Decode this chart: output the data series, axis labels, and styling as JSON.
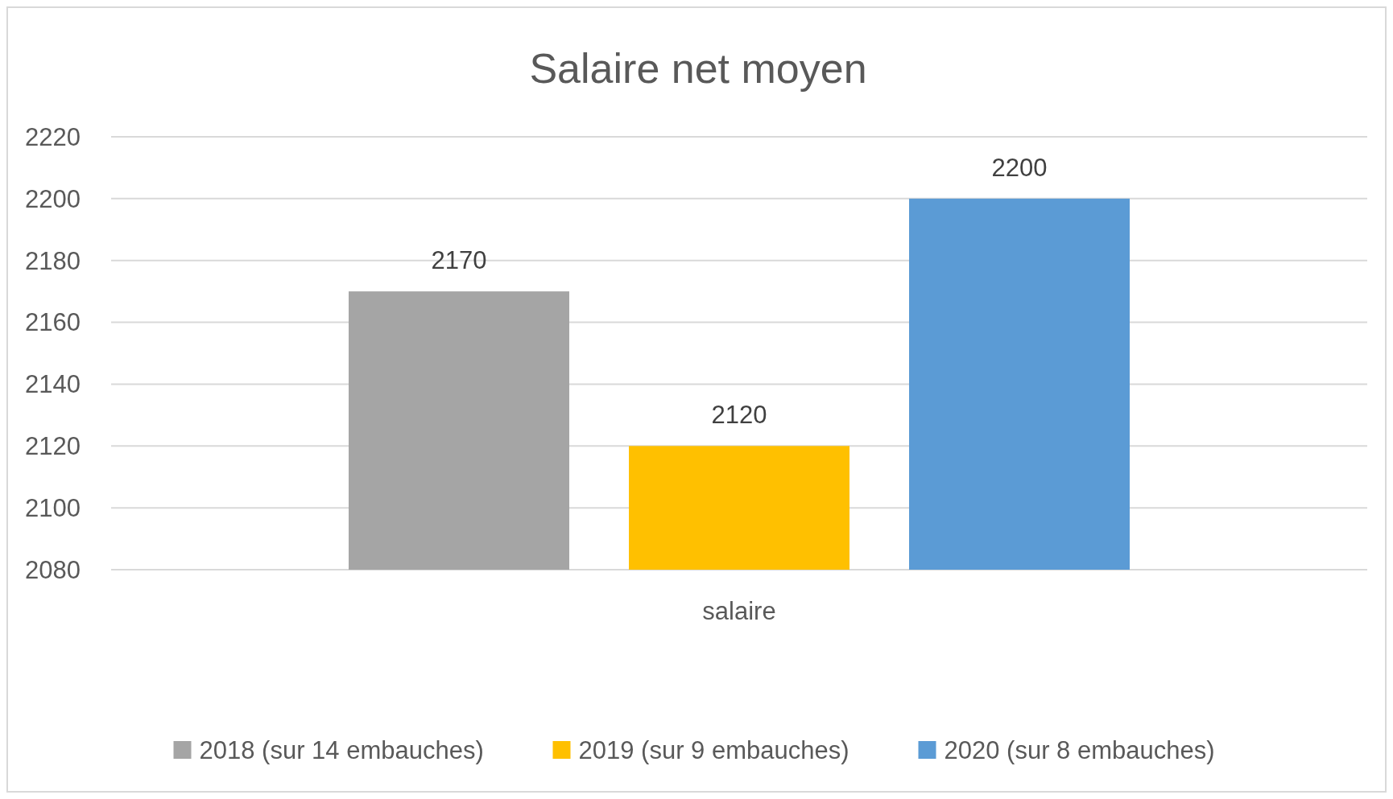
{
  "chart_data": {
    "type": "bar",
    "title": "Salaire net moyen",
    "categories": [
      "salaire"
    ],
    "series": [
      {
        "name": "2018 (sur 14 embauches)",
        "color": "#a5a5a5",
        "values": [
          2170
        ]
      },
      {
        "name": "2019 (sur 9 embauches)",
        "color": "#ffc000",
        "values": [
          2120
        ]
      },
      {
        "name": "2020 (sur 8 embauches)",
        "color": "#5b9bd5",
        "values": [
          2200
        ]
      }
    ],
    "ylim": [
      2080,
      2220
    ],
    "yticks": [
      2080,
      2100,
      2120,
      2140,
      2160,
      2180,
      2200,
      2220
    ],
    "grid": "y",
    "legend": "bottom",
    "data_labels": true
  }
}
